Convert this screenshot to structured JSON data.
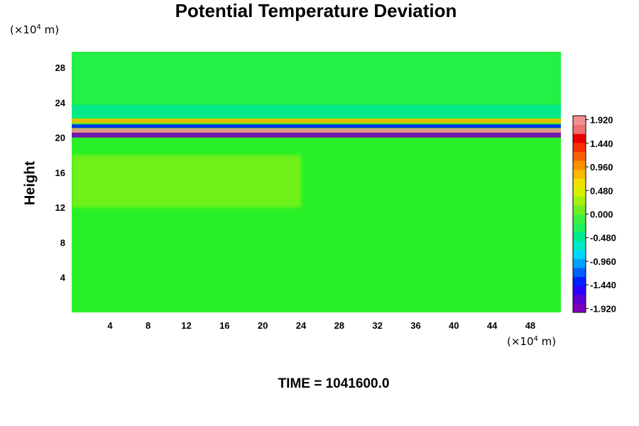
{
  "chart_data": {
    "type": "heatmap",
    "title": "Potential Temperature Deviation",
    "ylabel": "Height",
    "y_unit": {
      "prefix": "(×10",
      "exp": "4",
      "suffix": " m)"
    },
    "x_unit": {
      "prefix": "(×10",
      "exp": "4",
      "suffix": " m)"
    },
    "x_ticks": [
      "4",
      "8",
      "12",
      "16",
      "20",
      "24",
      "28",
      "32",
      "36",
      "40",
      "44",
      "48"
    ],
    "y_ticks": [
      "4",
      "8",
      "12",
      "16",
      "20",
      "24",
      "28"
    ],
    "xlim": [
      0,
      51.2
    ],
    "ylim": [
      0,
      29.8
    ],
    "colorbar": {
      "min": -2.0,
      "max": 2.0,
      "labels": [
        "1.920",
        "1.440",
        "0.960",
        "0.480",
        "0.000",
        "-0.480",
        "-0.960",
        "-1.440",
        "-1.920"
      ],
      "colors": [
        "#7a00b8",
        "#5a00d0",
        "#2a00ff",
        "#0020ff",
        "#0060ff",
        "#00a0ff",
        "#00d8ff",
        "#00e8c8",
        "#00e890",
        "#20f060",
        "#40f040",
        "#70f020",
        "#a8f010",
        "#d8f000",
        "#f0e000",
        "#f8b800",
        "#f89000",
        "#f86000",
        "#f83000",
        "#e80000",
        "#f07070",
        "#f09090"
      ]
    },
    "field": {
      "background": "#28f028",
      "features": [
        {
          "kind": "band",
          "y": 20.3,
          "thickness": 0.6,
          "value": -1.9
        },
        {
          "kind": "band",
          "y": 20.8,
          "thickness": 0.5,
          "value": 1.9
        },
        {
          "kind": "band",
          "y": 21.3,
          "thickness": 0.4,
          "value": -1.4
        },
        {
          "kind": "band",
          "y": 21.9,
          "thickness": 0.5,
          "value": 0.8
        },
        {
          "kind": "band",
          "y": 23.0,
          "thickness": 1.5,
          "value": -0.5
        },
        {
          "kind": "region",
          "x": [
            0,
            24
          ],
          "y": [
            12,
            18
          ],
          "value": 0.2
        },
        {
          "kind": "region",
          "x": [
            0,
            51.2
          ],
          "y": [
            22,
            29.8
          ],
          "value": -0.3
        }
      ]
    },
    "time_label": "TIME = 1041600.0"
  }
}
